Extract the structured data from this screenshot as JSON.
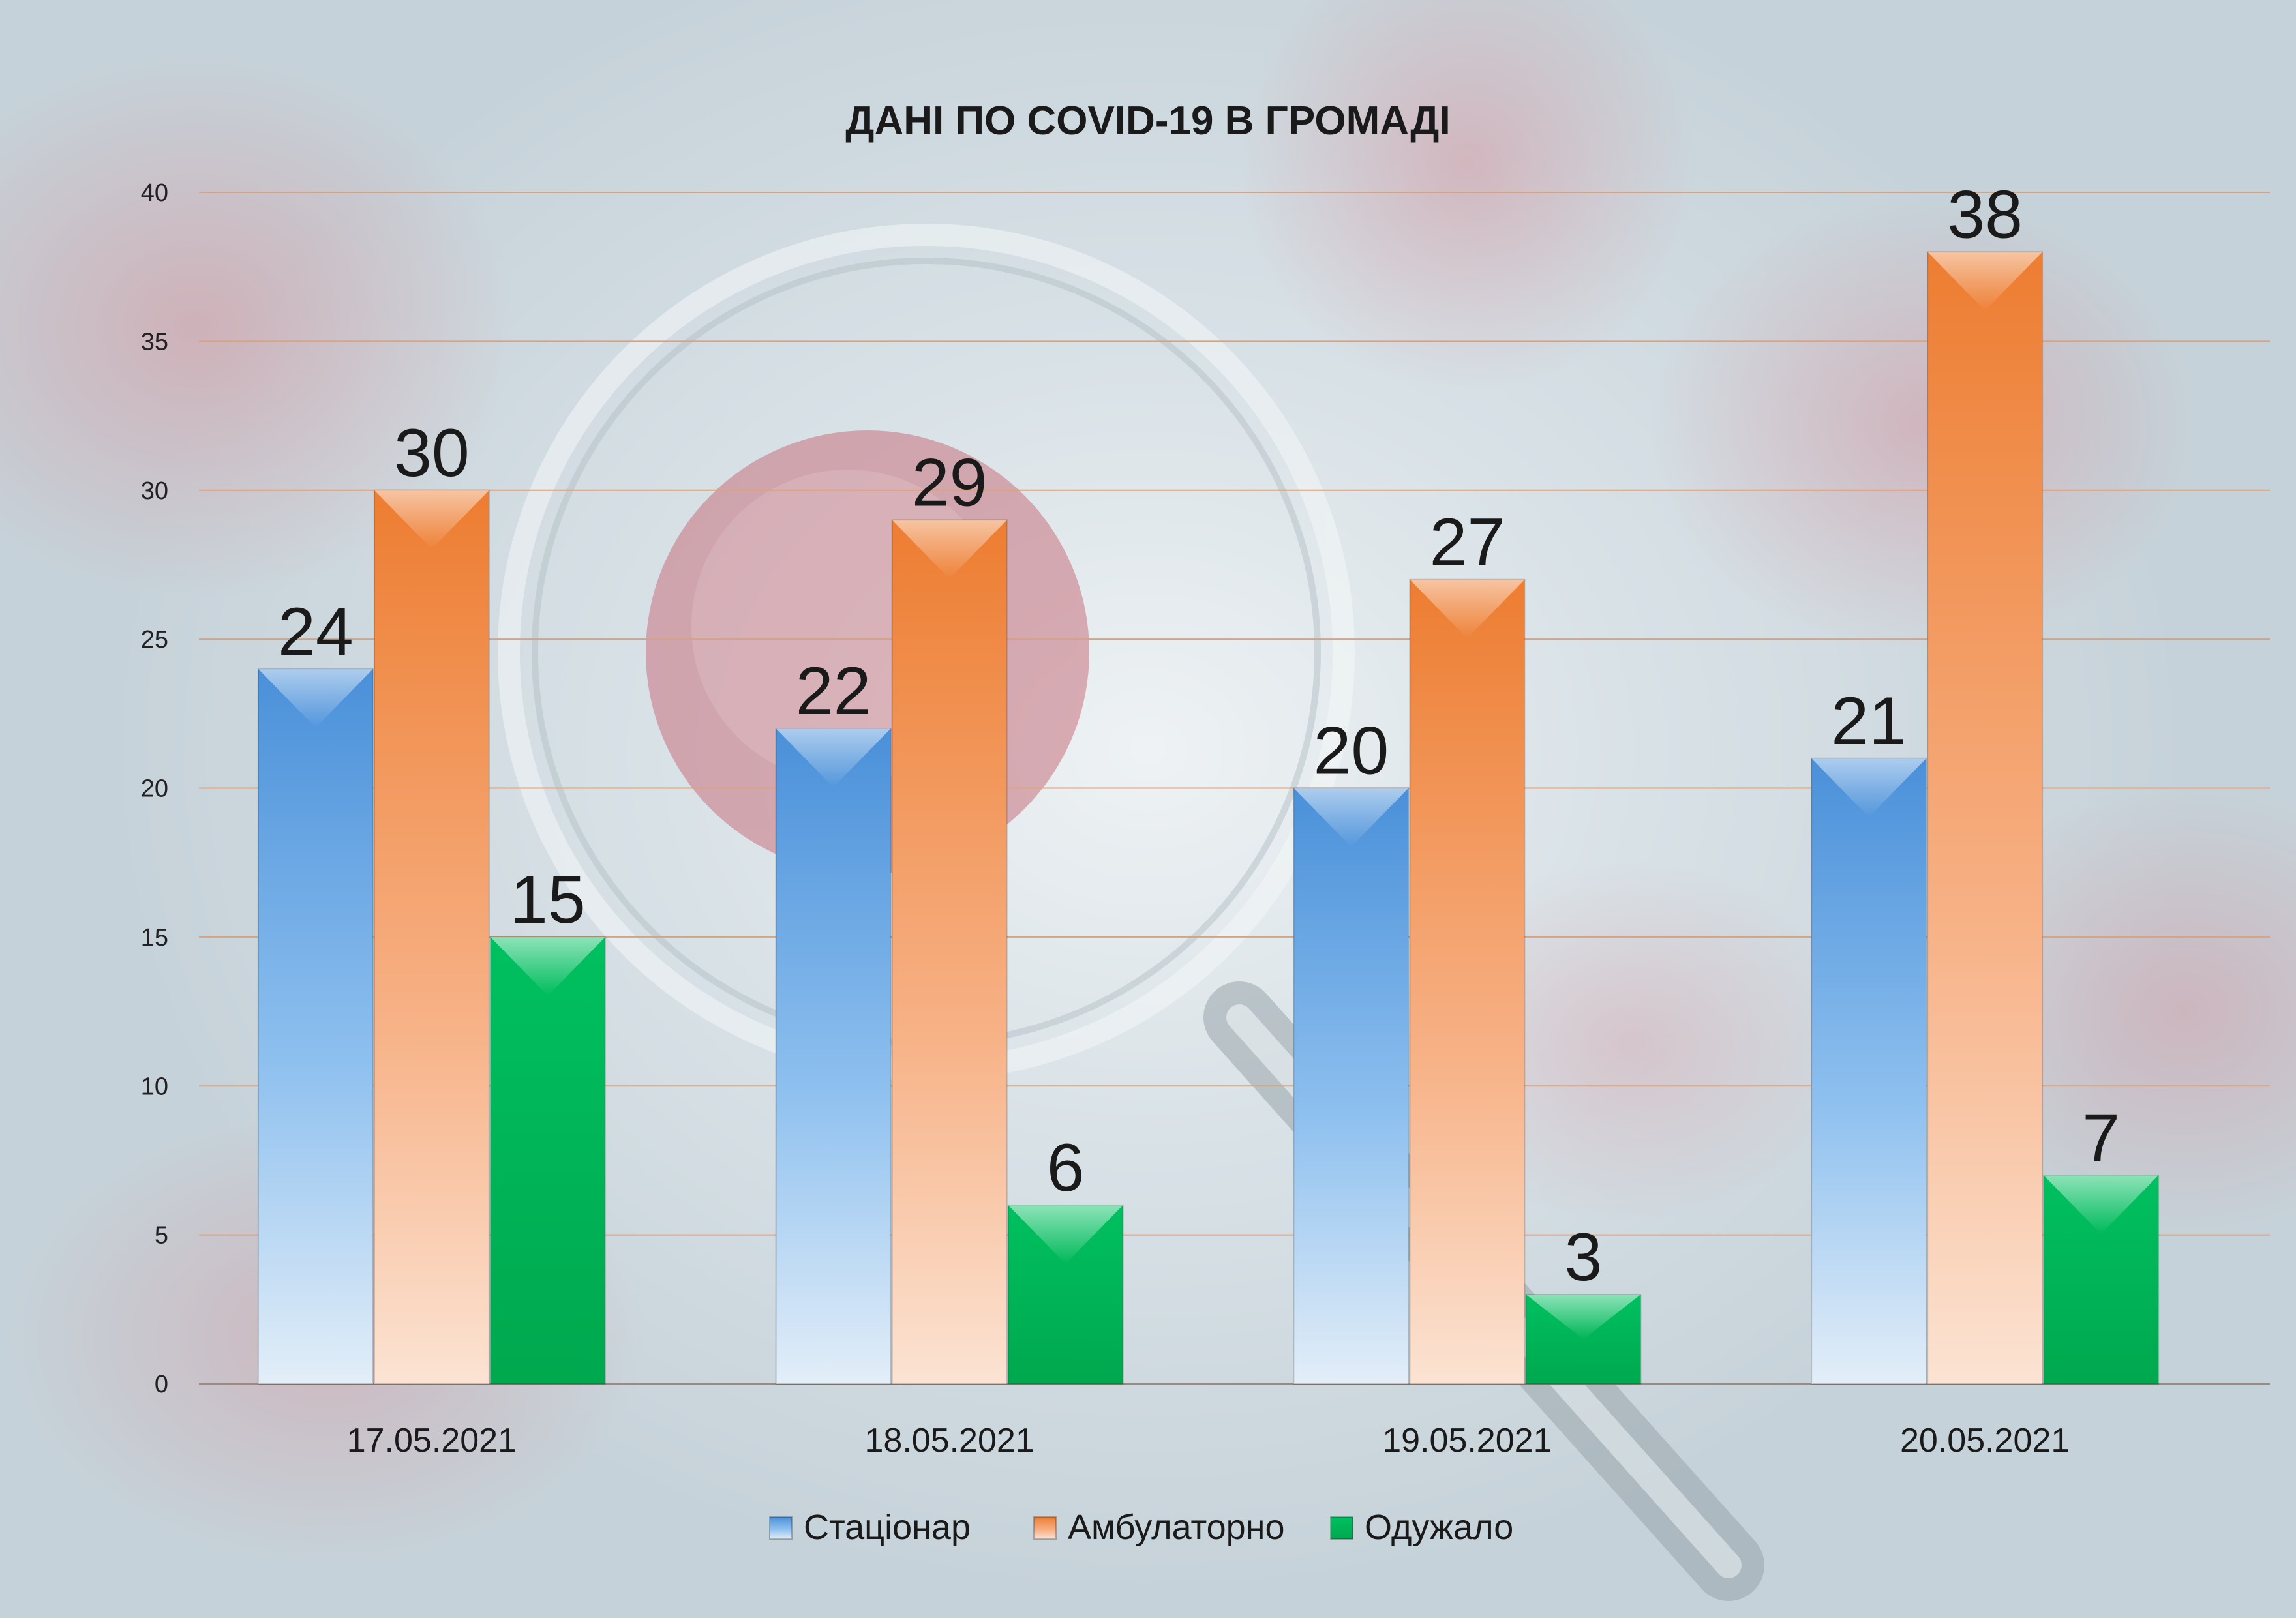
{
  "chart_data": {
    "type": "bar",
    "title": "ДАНІ ПО COVID-19 В ГРОМАДІ",
    "categories": [
      "17.05.2021",
      "18.05.2021",
      "19.05.2021",
      "20.05.2021"
    ],
    "series": [
      {
        "name": "Стаціонар",
        "values": [
          24,
          22,
          20,
          21
        ],
        "color": "#5b9bd5"
      },
      {
        "name": "Амбулаторно",
        "values": [
          30,
          29,
          27,
          38
        ],
        "color": "#ed7d31"
      },
      {
        "name": "Одужало",
        "values": [
          15,
          6,
          3,
          7
        ],
        "color": "#00b050"
      }
    ],
    "ylim": [
      0,
      40
    ],
    "yticks": [
      0,
      5,
      10,
      15,
      20,
      25,
      30,
      35,
      40
    ],
    "grid": true,
    "legend": "bottom",
    "data_labels": true
  }
}
